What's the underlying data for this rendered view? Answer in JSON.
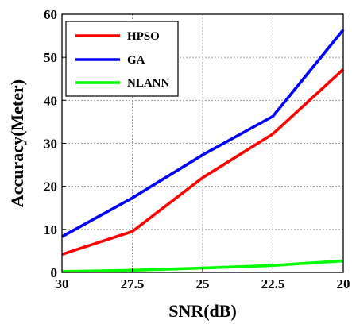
{
  "chart_data": {
    "type": "line",
    "xlabel": "SNR(dB)",
    "ylabel": "Accuracy(Meter)",
    "x": [
      30,
      27.5,
      25,
      22.5,
      20
    ],
    "xticks": [
      "30",
      "27.5",
      "25",
      "22.5",
      "20"
    ],
    "yticks": [
      "0",
      "10",
      "20",
      "30",
      "40",
      "50",
      "60"
    ],
    "xlim": [
      30,
      20
    ],
    "ylim": [
      0,
      60
    ],
    "x_reversed": true,
    "grid": true,
    "legend_position": "top-left",
    "series": [
      {
        "name": "HPSO",
        "color": "#ff0000",
        "values": [
          4.2,
          9.5,
          22.0,
          32.2,
          47.2
        ]
      },
      {
        "name": "GA",
        "color": "#0000ff",
        "values": [
          8.3,
          17.3,
          27.3,
          36.3,
          56.4
        ]
      },
      {
        "name": "NLANN",
        "color": "#00ff00",
        "values": [
          0.2,
          0.5,
          1.0,
          1.6,
          2.7
        ]
      }
    ]
  }
}
